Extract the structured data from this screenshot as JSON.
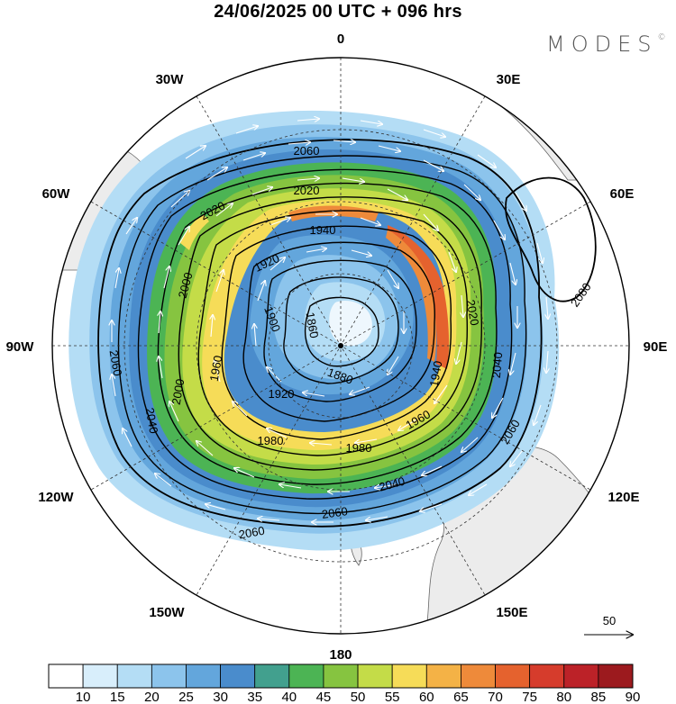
{
  "title": "24/06/2025  00 UTC  + 096 hrs",
  "brand": "MODES",
  "brand_mark": "©",
  "longitude_labels": {
    "n": "0",
    "ne": "30E",
    "ene": "60E",
    "e": "90E",
    "ese": "120E",
    "se": "150E",
    "s": "180",
    "sw": "150W",
    "wsw": "120W",
    "w": "90W",
    "wnw": "60W",
    "nw": "30W"
  },
  "contour_labels": {
    "c2060a": "2060",
    "c2020a": "2020",
    "c2020b": "2020",
    "c1940": "1940",
    "c1920a": "1920",
    "c2000a": "2000",
    "c1900": "1900",
    "c1860": "1860",
    "c1960a": "1960",
    "c1880": "1880",
    "c1920b": "1920",
    "c2020c": "2020",
    "c2040a": "2040",
    "c1940b": "1940",
    "c2080": "2080",
    "c2060b": "2060",
    "c2000b": "2000",
    "c2040b": "2040",
    "c1980a": "1980",
    "c1980b": "1980",
    "c1960b": "1960",
    "c2040c": "2040",
    "c2060c": "2060",
    "c2060d": "2060",
    "c2060e": "2060"
  },
  "reference_vector_label": "50",
  "colorbar": {
    "labels": [
      "10",
      "15",
      "20",
      "25",
      "30",
      "35",
      "40",
      "45",
      "50",
      "55",
      "60",
      "65",
      "70",
      "75",
      "80",
      "85",
      "90"
    ],
    "colors": [
      "#ffffff",
      "#d8eefb",
      "#b4ddf5",
      "#8cc4ec",
      "#63a6dc",
      "#4a8ccc",
      "#42a08e",
      "#4cb454",
      "#86c440",
      "#c4dc48",
      "#f6dc58",
      "#f4b246",
      "#ee8a3a",
      "#e5622e",
      "#d63c2c",
      "#bc2228",
      "#9c1a1e"
    ]
  },
  "colors": {
    "land": "#ececec",
    "contour": "#000000",
    "wind_vector": "#ffffff"
  }
}
